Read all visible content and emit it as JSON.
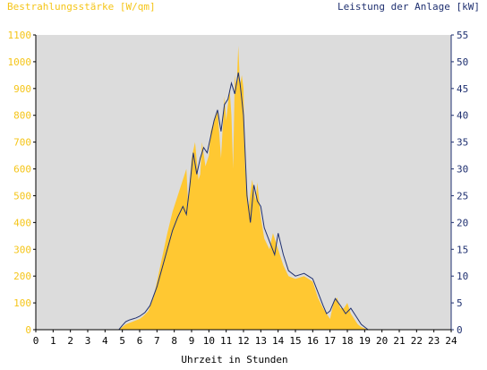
{
  "chart_data": {
    "type": "area",
    "title_left": "Bestrahlungsstärke [W/qm]",
    "title_right": "Leistung der Anlage [kW]",
    "xlabel": "Uhrzeit in Stunden",
    "x_ticks": [
      "0",
      "1",
      "2",
      "3",
      "4",
      "5",
      "6",
      "7",
      "8",
      "9",
      "10",
      "11",
      "12",
      "13",
      "14",
      "15",
      "16",
      "17",
      "18",
      "19",
      "20",
      "21",
      "22",
      "23",
      "24"
    ],
    "xlim": [
      0,
      24
    ],
    "y_left_ticks": [
      "0",
      "100",
      "200",
      "300",
      "400",
      "500",
      "600",
      "700",
      "800",
      "900",
      "1000",
      "1100"
    ],
    "y_left_lim": [
      0,
      1100
    ],
    "y_right_ticks": [
      "0",
      "5",
      "10",
      "15",
      "20",
      "25",
      "30",
      "35",
      "40",
      "45",
      "50",
      "55"
    ],
    "y_right_lim": [
      0,
      55
    ],
    "grid": false,
    "colors": {
      "plot_background": "#dcdcdc",
      "irradiance_fill": "#ffc832",
      "power_line": "#1f3070",
      "left_axis_text": "#f5c518",
      "right_axis_text": "#1f3070"
    },
    "series": [
      {
        "axis": "left",
        "style": "area",
        "x": [
          0,
          4.8,
          5.0,
          5.2,
          5.4,
          5.6,
          5.8,
          6.0,
          6.2,
          6.5,
          6.8,
          7.0,
          7.3,
          7.6,
          7.9,
          8.2,
          8.5,
          8.7,
          8.8,
          9.0,
          9.2,
          9.4,
          9.5,
          9.6,
          9.8,
          10.0,
          10.1,
          10.3,
          10.5,
          10.7,
          10.9,
          11.0,
          11.2,
          11.3,
          11.4,
          11.5,
          11.6,
          11.7,
          11.8,
          11.9,
          12.0,
          12.1,
          12.3,
          12.5,
          12.7,
          12.8,
          13.0,
          13.2,
          13.5,
          13.7,
          14.0,
          14.3,
          14.6,
          15.0,
          15.5,
          16.0,
          16.3,
          16.6,
          16.8,
          17.0,
          17.2,
          17.4,
          17.6,
          17.8,
          18.0,
          18.2,
          18.4,
          18.6,
          18.8,
          19.0,
          19.2,
          19.5,
          24
        ],
        "values": [
          0,
          0,
          10,
          20,
          25,
          30,
          35,
          40,
          50,
          70,
          120,
          180,
          270,
          360,
          440,
          500,
          560,
          600,
          470,
          640,
          700,
          560,
          580,
          700,
          610,
          650,
          740,
          780,
          820,
          640,
          870,
          780,
          900,
          800,
          600,
          950,
          900,
          1060,
          910,
          950,
          900,
          600,
          460,
          560,
          480,
          550,
          420,
          340,
          300,
          360,
          300,
          240,
          200,
          190,
          200,
          180,
          120,
          80,
          60,
          40,
          100,
          120,
          80,
          80,
          100,
          60,
          40,
          20,
          10,
          5,
          0,
          0,
          0
        ]
      },
      {
        "axis": "right",
        "style": "line",
        "x": [
          0,
          4.8,
          5.0,
          5.2,
          5.4,
          5.6,
          5.8,
          6.0,
          6.3,
          6.6,
          7.0,
          7.3,
          7.6,
          7.9,
          8.2,
          8.5,
          8.7,
          8.9,
          9.1,
          9.3,
          9.5,
          9.7,
          9.9,
          10.1,
          10.3,
          10.5,
          10.7,
          10.9,
          11.1,
          11.3,
          11.5,
          11.7,
          11.8,
          11.9,
          12.0,
          12.2,
          12.4,
          12.6,
          12.8,
          13.0,
          13.2,
          13.5,
          13.8,
          14.0,
          14.3,
          14.6,
          15.0,
          15.5,
          16.0,
          16.3,
          16.6,
          16.8,
          17.0,
          17.3,
          17.6,
          17.9,
          18.2,
          18.5,
          18.8,
          19.0,
          19.2,
          19.5,
          24
        ],
        "values": [
          0,
          0,
          0.8,
          1.5,
          1.8,
          2.0,
          2.2,
          2.5,
          3.2,
          4.5,
          8.0,
          11.5,
          15.0,
          18.5,
          21.0,
          23.0,
          21.5,
          27.0,
          33.0,
          29.0,
          32.0,
          34.0,
          33.0,
          36.0,
          39.0,
          41.0,
          37.0,
          42.0,
          43.0,
          46.0,
          44.0,
          48.0,
          46.0,
          43.0,
          40.0,
          25.0,
          20.0,
          27.0,
          24.0,
          23.0,
          19.0,
          16.5,
          14.0,
          18.0,
          14.0,
          11.0,
          10.0,
          10.5,
          9.5,
          7.0,
          4.5,
          3.0,
          3.5,
          5.8,
          4.5,
          3.0,
          4.0,
          2.5,
          1.0,
          0.5,
          0,
          0,
          0
        ]
      }
    ]
  }
}
